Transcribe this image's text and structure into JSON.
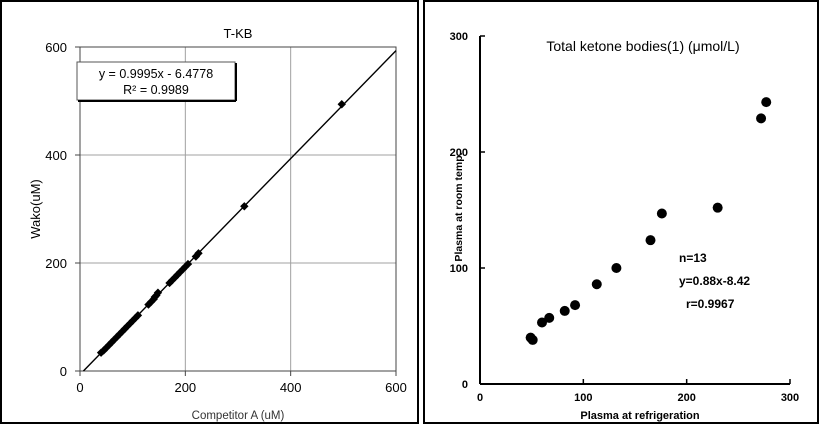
{
  "chart_data": [
    {
      "type": "scatter",
      "title": "T-KB",
      "xlabel": "Competitor A (uM)",
      "ylabel": "Wako(uM)",
      "xlim": [
        0,
        600
      ],
      "ylim": [
        0,
        600
      ],
      "xticks": [
        "0",
        "200",
        "400",
        "600"
      ],
      "yticks": [
        "0",
        "200",
        "400",
        "600"
      ],
      "grid": true,
      "annotation": {
        "equation": "y = 0.9995x - 6.4778",
        "r2": "R² = 0.9989"
      },
      "trendline": {
        "slope": 0.9995,
        "intercept": -6.4778
      },
      "series": [
        {
          "points": [
            [
              40,
              34
            ],
            [
              45,
              38
            ],
            [
              50,
              43
            ],
            [
              55,
              48
            ],
            [
              60,
              53
            ],
            [
              65,
              58
            ],
            [
              70,
              63
            ],
            [
              75,
              68
            ],
            [
              80,
              73
            ],
            [
              85,
              78
            ],
            [
              90,
              83
            ],
            [
              95,
              88
            ],
            [
              100,
              93
            ],
            [
              105,
              98
            ],
            [
              110,
              103
            ],
            [
              130,
              123
            ],
            [
              135,
              128
            ],
            [
              140,
              133
            ],
            [
              142,
              137
            ],
            [
              145,
              140
            ],
            [
              148,
              145
            ],
            [
              170,
              163
            ],
            [
              175,
              168
            ],
            [
              180,
              173
            ],
            [
              185,
              178
            ],
            [
              190,
              183
            ],
            [
              195,
              188
            ],
            [
              200,
              193
            ],
            [
              205,
              198
            ],
            [
              220,
              212
            ],
            [
              225,
              218
            ],
            [
              312,
              305
            ],
            [
              497,
              494
            ]
          ]
        }
      ]
    },
    {
      "type": "scatter",
      "title": "Total ketone bodies(1) (μmol/L)",
      "xlabel": "Plasma at refrigeration",
      "ylabel": "Plasma at room temp.",
      "xlim": [
        0,
        300
      ],
      "ylim": [
        0,
        300
      ],
      "xticks": [
        "0",
        "100",
        "200",
        "300"
      ],
      "yticks": [
        "0",
        "100",
        "200",
        "300"
      ],
      "grid": false,
      "stats": {
        "n": "n=13",
        "equation": "y=0.88x-8.42",
        "r": "r=0.9967"
      },
      "series": [
        {
          "points": [
            [
              49,
              40
            ],
            [
              51,
              38
            ],
            [
              60,
              53
            ],
            [
              67,
              57
            ],
            [
              82,
              63
            ],
            [
              92,
              68
            ],
            [
              113,
              86
            ],
            [
              132,
              100
            ],
            [
              165,
              124
            ],
            [
              176,
              147
            ],
            [
              230,
              152
            ],
            [
              272,
              229
            ],
            [
              277,
              243
            ]
          ]
        }
      ]
    }
  ]
}
